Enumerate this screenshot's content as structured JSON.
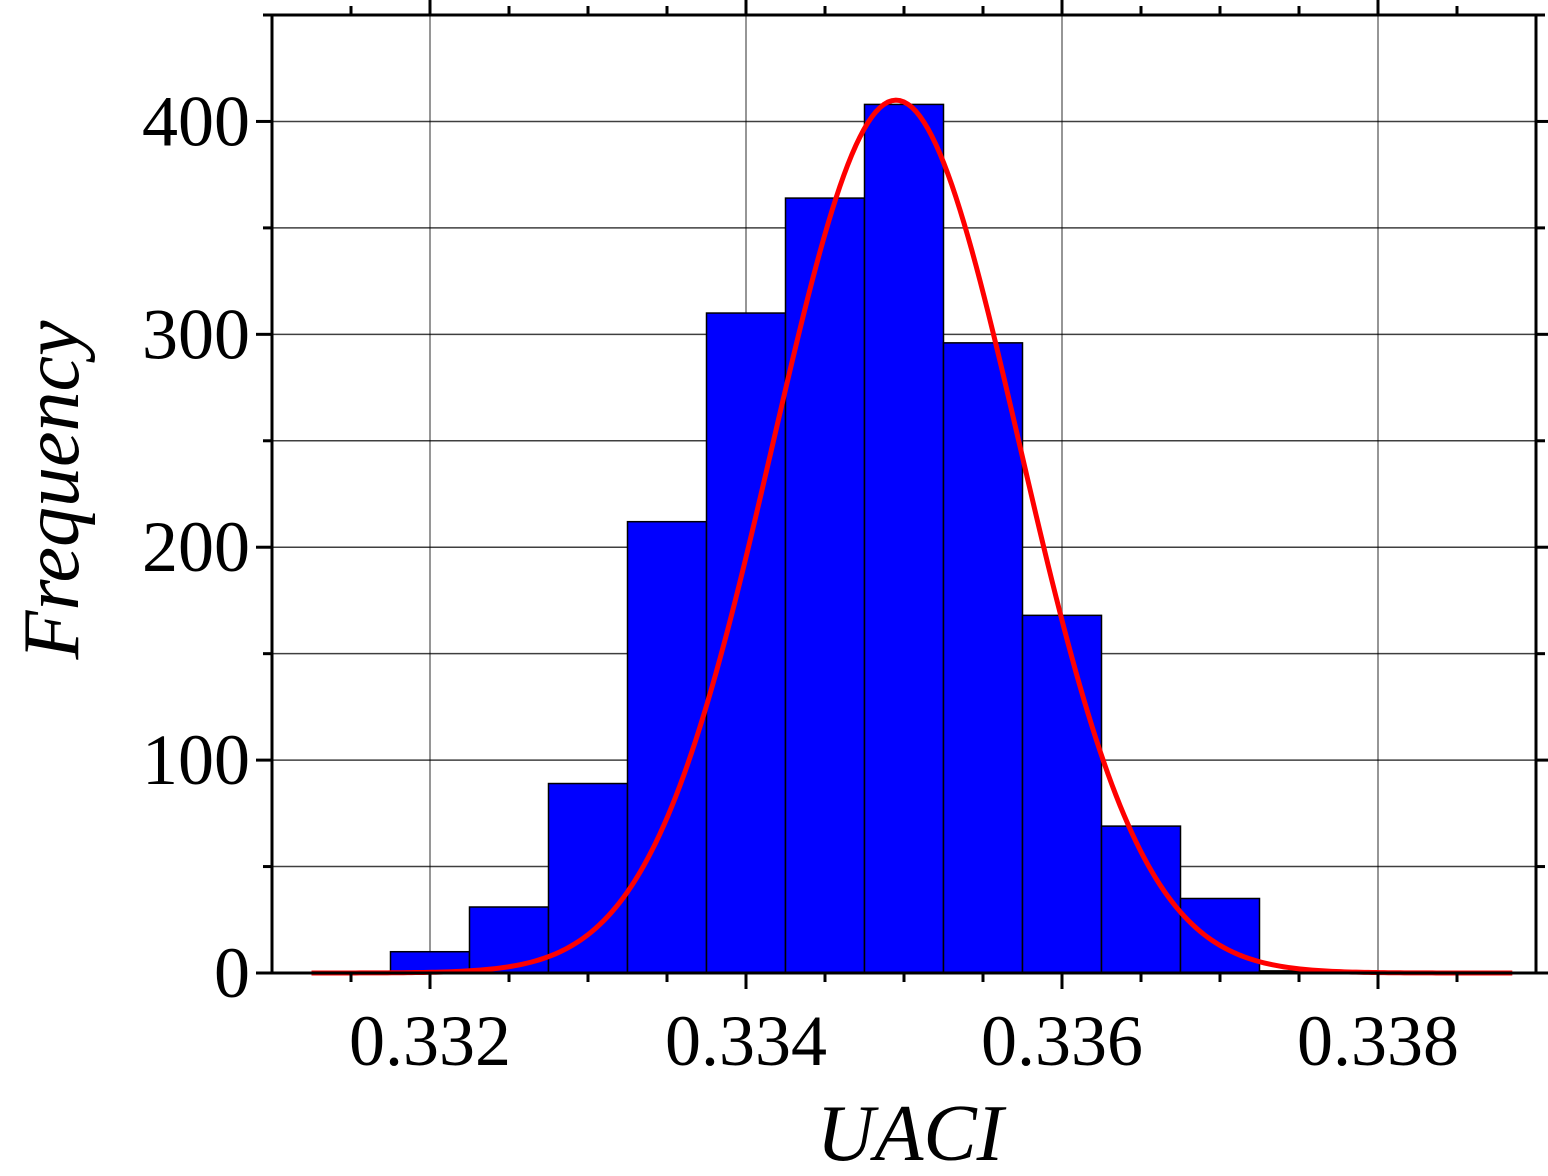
{
  "chart_data": {
    "type": "bar",
    "subtype": "histogram-with-normal-fit",
    "title": "",
    "xlabel": "UACI",
    "ylabel": "Frequency",
    "xlim": [
      0.331,
      0.339
    ],
    "ylim": [
      0,
      450
    ],
    "x_ticks": [
      0.332,
      0.334,
      0.336,
      0.338
    ],
    "x_tick_labels": [
      "0.332",
      "0.334",
      "0.336",
      "0.338"
    ],
    "y_ticks": [
      0,
      100,
      200,
      300,
      400
    ],
    "y_tick_labels": [
      "0",
      "100",
      "200",
      "300",
      "400"
    ],
    "grid": true,
    "bin_width": 0.0005,
    "bins": [
      {
        "x0": 0.33175,
        "x1": 0.33225,
        "count": 10
      },
      {
        "x0": 0.33225,
        "x1": 0.33275,
        "count": 31
      },
      {
        "x0": 0.33275,
        "x1": 0.33325,
        "count": 89
      },
      {
        "x0": 0.33325,
        "x1": 0.33375,
        "count": 212
      },
      {
        "x0": 0.33375,
        "x1": 0.33425,
        "count": 310
      },
      {
        "x0": 0.33425,
        "x1": 0.33475,
        "count": 364
      },
      {
        "x0": 0.33475,
        "x1": 0.33525,
        "count": 408
      },
      {
        "x0": 0.33525,
        "x1": 0.33575,
        "count": 296
      },
      {
        "x0": 0.33575,
        "x1": 0.33625,
        "count": 168
      },
      {
        "x0": 0.33625,
        "x1": 0.33675,
        "count": 69
      },
      {
        "x0": 0.33675,
        "x1": 0.33725,
        "count": 35
      },
      {
        "x0": 0.33725,
        "x1": 0.33775,
        "count": 1
      }
    ],
    "fit": {
      "type": "normal",
      "mean": 0.33495,
      "std": 0.00078,
      "peak": 410,
      "x_range": [
        0.33125,
        0.33885
      ]
    },
    "colors": {
      "bar_fill": "#0000ff",
      "bar_stroke": "#000000",
      "fit_line": "#ff0000",
      "grid": "#000000"
    }
  }
}
